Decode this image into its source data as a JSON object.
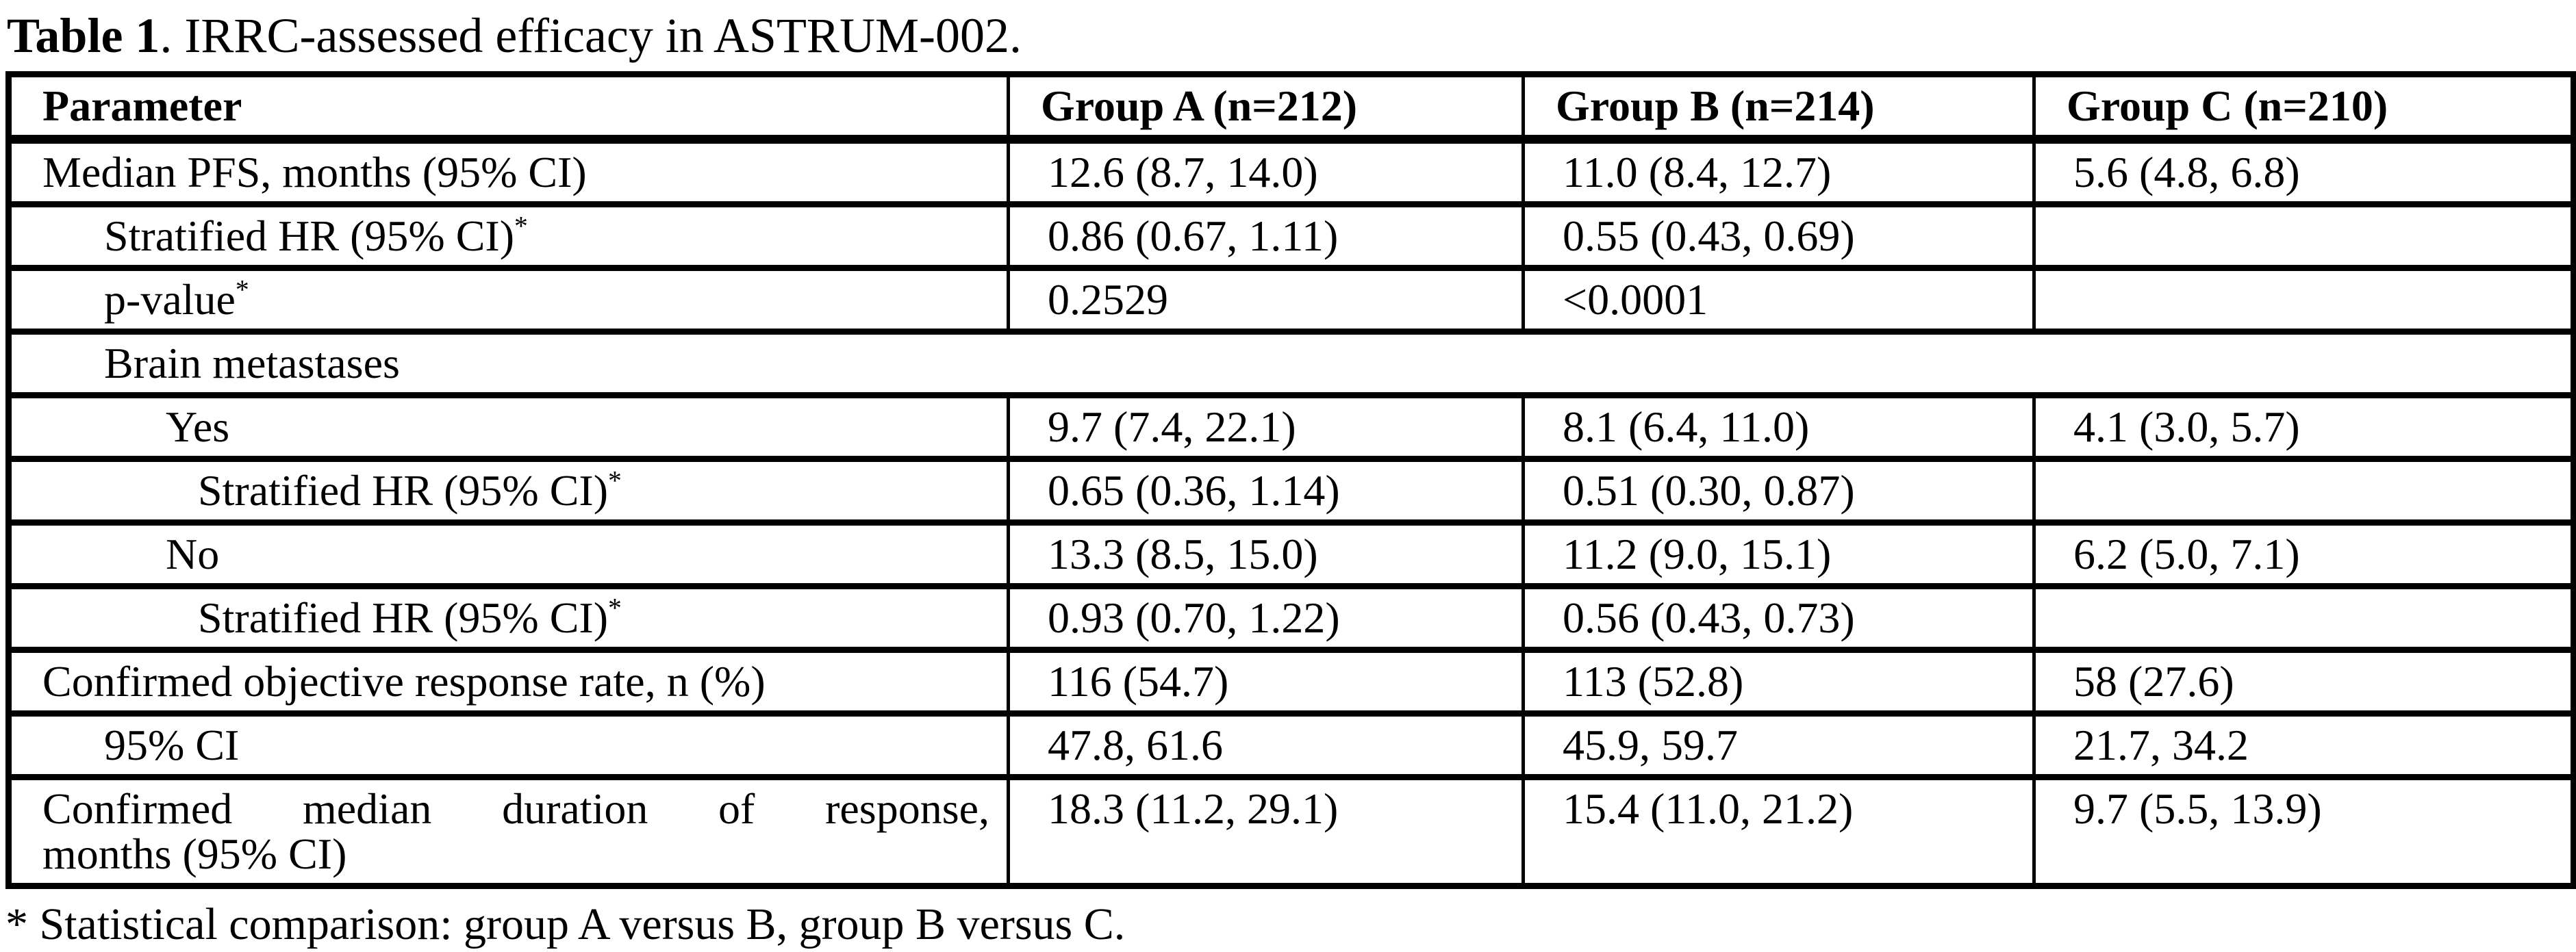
{
  "title": {
    "bold": "Table 1",
    "rest": ". IRRC-assessed efficacy in ASTRUM-002."
  },
  "table": {
    "headers": [
      "Parameter",
      "Group A (n=212)",
      "Group B (n=214)",
      "Group C (n=210)"
    ],
    "rows": [
      {
        "label": "Median PFS, months (95% CI)",
        "sup": "",
        "indent": 0,
        "merged": false,
        "a": "12.6 (8.7, 14.0)",
        "b": "11.0 (8.4, 12.7)",
        "c": "5.6 (4.8, 6.8)"
      },
      {
        "label": "Stratified HR (95% CI)",
        "sup": "*",
        "indent": 1,
        "merged": false,
        "a": "0.86 (0.67, 1.11)",
        "b": "0.55 (0.43, 0.69)",
        "c": ""
      },
      {
        "label": "p-value",
        "sup": "*",
        "indent": 1,
        "merged": false,
        "a": "0.2529",
        "b": "<0.0001",
        "c": ""
      },
      {
        "label": "Brain metastases",
        "sup": "",
        "indent": 1,
        "merged": true,
        "a": "",
        "b": "",
        "c": ""
      },
      {
        "label": "Yes",
        "sup": "",
        "indent": 2,
        "merged": false,
        "a": "9.7 (7.4, 22.1)",
        "b": "8.1 (6.4, 11.0)",
        "c": "4.1 (3.0, 5.7)"
      },
      {
        "label": "Stratified HR (95% CI)",
        "sup": "*",
        "indent": 3,
        "merged": false,
        "a": "0.65 (0.36, 1.14)",
        "b": "0.51 (0.30, 0.87)",
        "c": ""
      },
      {
        "label": "No",
        "sup": "",
        "indent": 2,
        "merged": false,
        "a": "13.3 (8.5, 15.0)",
        "b": "11.2 (9.0, 15.1)",
        "c": "6.2 (5.0, 7.1)"
      },
      {
        "label": "Stratified HR (95% CI)",
        "sup": "*",
        "indent": 3,
        "merged": false,
        "a": "0.93 (0.70, 1.22)",
        "b": "0.56 (0.43, 0.73)",
        "c": ""
      },
      {
        "label": "Confirmed objective response rate, n (%)",
        "sup": "",
        "indent": 0,
        "merged": false,
        "a": "116 (54.7)",
        "b": "113 (52.8)",
        "c": "58 (27.6)"
      },
      {
        "label": "95% CI",
        "sup": "",
        "indent": 1,
        "merged": false,
        "a": "47.8, 61.6",
        "b": "45.9, 59.7",
        "c": "21.7, 34.2"
      },
      {
        "label": "Confirmed median duration of response,",
        "label_line2": "months (95% CI)",
        "justify": true,
        "sup": "",
        "indent": 0,
        "merged": false,
        "a": "18.3 (11.2, 29.1)",
        "b": "15.4 (11.0, 21.2)",
        "c": "9.7 (5.5, 13.9)"
      }
    ]
  },
  "footnote": "* Statistical comparison: group A versus B, group B versus C."
}
